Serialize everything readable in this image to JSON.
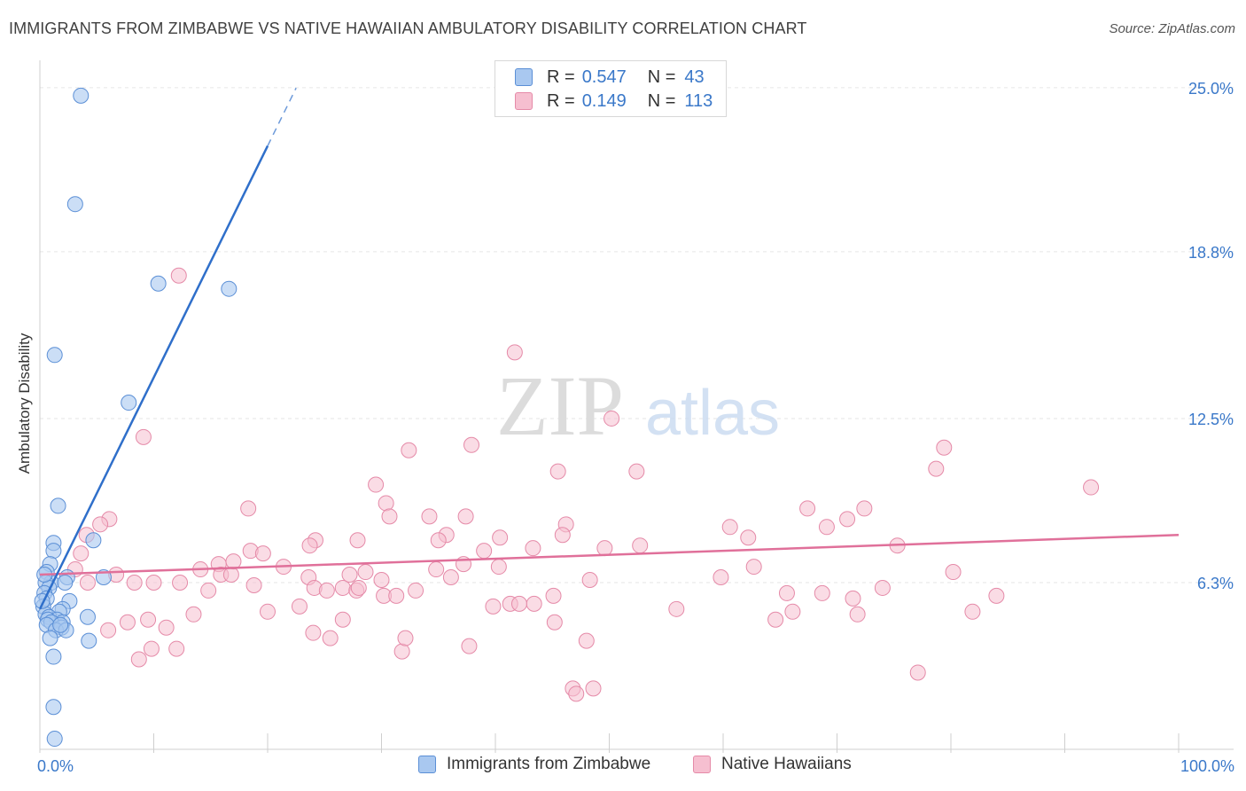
{
  "title": "IMMIGRANTS FROM ZIMBABWE VS NATIVE HAWAIIAN AMBULATORY DISABILITY CORRELATION CHART",
  "source": "Source: ZipAtlas.com",
  "watermark": {
    "zip": "ZIP",
    "atlas": "atlas"
  },
  "colors": {
    "blue_fill": "#a9c8f0",
    "blue_stroke": "#5b8fd6",
    "blue_line": "#2f6fca",
    "pink_fill": "#f6bfd0",
    "pink_stroke": "#e58aa8",
    "pink_line": "#e0709a",
    "tick_label": "#3a78c9",
    "grid": "#e6e6e6"
  },
  "legend_top": [
    {
      "series": "Immigrants from Zimbabwe",
      "r_label": "R =",
      "r_value": "0.547",
      "n_label": "N =",
      "n_value": "43"
    },
    {
      "series": "Native Hawaiians",
      "r_label": "R =",
      "r_value": "0.149",
      "n_label": "N =",
      "n_value": "113"
    }
  ],
  "chart_data": {
    "type": "scatter",
    "title": "IMMIGRANTS FROM ZIMBABWE VS NATIVE HAWAIIAN AMBULATORY DISABILITY CORRELATION CHART",
    "xlabel": "",
    "ylabel": "Ambulatory Disability",
    "xlim": [
      0,
      100
    ],
    "ylim": [
      0,
      25.8
    ],
    "x_tick_labels": [
      "0.0%",
      "100.0%"
    ],
    "y_ticks": [
      6.3,
      12.5,
      18.8,
      25.0
    ],
    "y_tick_labels": [
      "6.3%",
      "12.5%",
      "18.8%",
      "25.0%"
    ],
    "grid": true,
    "legend": "top-center",
    "series": [
      {
        "name": "Immigrants from Zimbabwe",
        "r": 0.547,
        "n": 43,
        "trend": {
          "x0": 0,
          "y0": 5.3,
          "x1": 20,
          "y1": 22.8,
          "dash_to_x": 22.5
        },
        "points": [
          [
            3.6,
            24.7
          ],
          [
            3.1,
            20.6
          ],
          [
            10.4,
            17.6
          ],
          [
            16.6,
            17.4
          ],
          [
            1.3,
            14.9
          ],
          [
            7.8,
            13.1
          ],
          [
            1.6,
            9.2
          ],
          [
            4.7,
            7.9
          ],
          [
            1.2,
            7.8
          ],
          [
            1.2,
            7.5
          ],
          [
            0.9,
            7.0
          ],
          [
            0.6,
            6.7
          ],
          [
            1.0,
            6.3
          ],
          [
            5.6,
            6.5
          ],
          [
            2.4,
            6.5
          ],
          [
            0.5,
            6.3
          ],
          [
            0.8,
            6.1
          ],
          [
            0.4,
            5.9
          ],
          [
            0.6,
            5.7
          ],
          [
            2.6,
            5.6
          ],
          [
            0.3,
            5.4
          ],
          [
            2.0,
            5.3
          ],
          [
            1.7,
            5.2
          ],
          [
            0.5,
            5.1
          ],
          [
            0.8,
            5.0
          ],
          [
            4.2,
            5.0
          ],
          [
            1.5,
            4.9
          ],
          [
            0.7,
            4.9
          ],
          [
            2.0,
            4.8
          ],
          [
            1.0,
            4.8
          ],
          [
            0.6,
            4.7
          ],
          [
            1.9,
            4.6
          ],
          [
            1.4,
            4.5
          ],
          [
            2.3,
            4.5
          ],
          [
            0.9,
            4.2
          ],
          [
            4.3,
            4.1
          ],
          [
            1.2,
            3.5
          ],
          [
            1.2,
            1.6
          ],
          [
            1.3,
            0.4
          ],
          [
            0.4,
            6.6
          ],
          [
            1.8,
            4.7
          ],
          [
            0.2,
            5.6
          ],
          [
            2.2,
            6.3
          ]
        ]
      },
      {
        "name": "Native Hawaiians",
        "r": 0.149,
        "n": 113,
        "trend": {
          "x0": 0,
          "y0": 6.6,
          "x1": 100,
          "y1": 8.1
        },
        "points": [
          [
            12.2,
            17.9
          ],
          [
            41.7,
            15.0
          ],
          [
            50.2,
            12.5
          ],
          [
            9.1,
            11.8
          ],
          [
            37.9,
            11.5
          ],
          [
            32.4,
            11.3
          ],
          [
            45.5,
            10.5
          ],
          [
            52.4,
            10.5
          ],
          [
            78.7,
            10.6
          ],
          [
            79.4,
            11.4
          ],
          [
            92.3,
            9.9
          ],
          [
            29.5,
            10.0
          ],
          [
            18.3,
            9.1
          ],
          [
            30.4,
            9.3
          ],
          [
            30.7,
            8.8
          ],
          [
            34.2,
            8.8
          ],
          [
            37.4,
            8.8
          ],
          [
            46.2,
            8.5
          ],
          [
            60.6,
            8.4
          ],
          [
            67.4,
            9.1
          ],
          [
            72.4,
            9.1
          ],
          [
            70.9,
            8.7
          ],
          [
            69.1,
            8.4
          ],
          [
            6.1,
            8.7
          ],
          [
            5.3,
            8.5
          ],
          [
            4.1,
            8.1
          ],
          [
            35.7,
            8.1
          ],
          [
            35.0,
            7.9
          ],
          [
            40.4,
            8.0
          ],
          [
            45.9,
            8.1
          ],
          [
            27.9,
            7.9
          ],
          [
            24.2,
            7.9
          ],
          [
            23.7,
            7.7
          ],
          [
            43.3,
            7.6
          ],
          [
            49.6,
            7.6
          ],
          [
            75.3,
            7.7
          ],
          [
            62.2,
            8.0
          ],
          [
            6.7,
            6.6
          ],
          [
            8.3,
            6.3
          ],
          [
            4.2,
            6.3
          ],
          [
            3.1,
            6.8
          ],
          [
            3.6,
            7.4
          ],
          [
            14.1,
            6.8
          ],
          [
            14.8,
            6.0
          ],
          [
            15.7,
            7.0
          ],
          [
            15.9,
            6.6
          ],
          [
            16.8,
            6.6
          ],
          [
            17.0,
            7.1
          ],
          [
            18.5,
            7.5
          ],
          [
            18.8,
            6.2
          ],
          [
            19.6,
            7.4
          ],
          [
            21.4,
            6.9
          ],
          [
            23.6,
            6.5
          ],
          [
            24.1,
            6.1
          ],
          [
            25.2,
            6.0
          ],
          [
            26.6,
            6.1
          ],
          [
            27.2,
            6.6
          ],
          [
            28.6,
            6.7
          ],
          [
            30.0,
            6.4
          ],
          [
            30.2,
            5.8
          ],
          [
            31.3,
            5.8
          ],
          [
            33.0,
            6.0
          ],
          [
            34.8,
            6.8
          ],
          [
            36.1,
            6.5
          ],
          [
            37.2,
            7.0
          ],
          [
            39.0,
            7.5
          ],
          [
            40.3,
            6.9
          ],
          [
            41.3,
            5.5
          ],
          [
            42.1,
            5.5
          ],
          [
            45.1,
            5.8
          ],
          [
            48.3,
            6.4
          ],
          [
            52.7,
            7.7
          ],
          [
            59.8,
            6.5
          ],
          [
            62.7,
            6.9
          ],
          [
            65.6,
            5.9
          ],
          [
            68.7,
            5.9
          ],
          [
            71.8,
            5.1
          ],
          [
            74.0,
            6.1
          ],
          [
            80.2,
            6.7
          ],
          [
            81.9,
            5.2
          ],
          [
            84.0,
            5.8
          ],
          [
            12.3,
            6.3
          ],
          [
            13.5,
            5.1
          ],
          [
            10.0,
            6.3
          ],
          [
            9.5,
            4.9
          ],
          [
            9.8,
            3.8
          ],
          [
            11.1,
            4.6
          ],
          [
            7.7,
            4.8
          ],
          [
            8.7,
            3.4
          ],
          [
            6.0,
            4.5
          ],
          [
            20.0,
            5.2
          ],
          [
            22.8,
            5.4
          ],
          [
            24.0,
            4.4
          ],
          [
            25.5,
            4.2
          ],
          [
            26.6,
            4.9
          ],
          [
            27.8,
            6.0
          ],
          [
            28.0,
            6.1
          ],
          [
            31.8,
            3.7
          ],
          [
            32.1,
            4.2
          ],
          [
            37.7,
            3.9
          ],
          [
            39.8,
            5.4
          ],
          [
            43.4,
            5.5
          ],
          [
            45.2,
            4.8
          ],
          [
            46.8,
            2.3
          ],
          [
            47.1,
            2.1
          ],
          [
            48.0,
            4.1
          ],
          [
            48.6,
            2.3
          ],
          [
            55.9,
            5.3
          ],
          [
            64.6,
            4.9
          ],
          [
            66.1,
            5.2
          ],
          [
            71.4,
            5.7
          ],
          [
            77.1,
            2.9
          ],
          [
            12.0,
            3.8
          ]
        ]
      }
    ]
  }
}
